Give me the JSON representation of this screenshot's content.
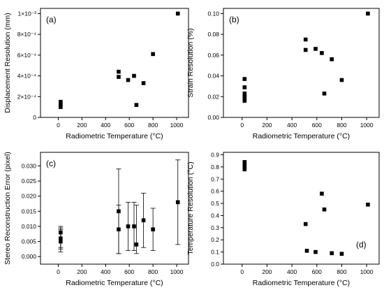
{
  "chart_data": [
    {
      "type": "scatter",
      "panel_label": "(a)",
      "xlabel": "Radiometric Temperature (°C)",
      "ylabel": "Displacement Resolution (mm)",
      "xlim": [
        -150,
        1100
      ],
      "ylim": [
        0,
        0.00105
      ],
      "xticks": [
        0,
        200,
        400,
        600,
        800,
        1000
      ],
      "xtick_labels": [
        "0",
        "200",
        "400",
        "600",
        "800",
        "1000"
      ],
      "yticks": [
        0,
        0.0002,
        0.0004,
        0.0006,
        0.0008,
        0.001
      ],
      "ytick_labels": [
        "0",
        "2×10⁻⁴",
        "4×10⁻⁴",
        "6×10⁻⁴",
        "8×10⁻⁴",
        "1×10⁻³"
      ],
      "series": [
        {
          "x": [
            20,
            20,
            20,
            510,
            510,
            590,
            640,
            660,
            720,
            800,
            1010
          ],
          "y": [
            0.0001,
            0.000125,
            0.00015,
            0.00044,
            0.00039,
            0.00036,
            0.0004,
            0.00012,
            0.00033,
            0.00061,
            0.001
          ]
        }
      ]
    },
    {
      "type": "scatter",
      "panel_label": "(b)",
      "xlabel": "Radiometric Temperature (°C)",
      "ylabel": "Strain Resolution (%)",
      "xlim": [
        -150,
        1100
      ],
      "ylim": [
        0,
        0.105
      ],
      "xticks": [
        0,
        200,
        400,
        600,
        800,
        1000
      ],
      "xtick_labels": [
        "0",
        "200",
        "400",
        "600",
        "800",
        "1000"
      ],
      "yticks": [
        0,
        0.02,
        0.04,
        0.06,
        0.08,
        0.1
      ],
      "ytick_labels": [
        "0.00",
        "0.02",
        "0.04",
        "0.06",
        "0.08",
        "0.10"
      ],
      "series": [
        {
          "x": [
            20,
            20,
            20,
            20,
            20,
            20,
            510,
            510,
            590,
            640,
            660,
            720,
            800,
            1010
          ],
          "y": [
            0.016,
            0.018,
            0.02,
            0.023,
            0.029,
            0.037,
            0.075,
            0.065,
            0.066,
            0.062,
            0.023,
            0.056,
            0.036,
            0.1
          ]
        }
      ]
    },
    {
      "type": "scatter",
      "panel_label": "(c)",
      "xlabel": "Radiometric Temperature (°C)",
      "ylabel": "Stereo Reconstruction Error (pixel)",
      "xlim": [
        -150,
        1100
      ],
      "ylim": [
        -0.0025,
        0.0345
      ],
      "xticks": [
        0,
        200,
        400,
        600,
        800,
        1000
      ],
      "xtick_labels": [
        "0",
        "200",
        "400",
        "600",
        "800",
        "1000"
      ],
      "yticks": [
        0,
        0.005,
        0.01,
        0.015,
        0.02,
        0.025,
        0.03
      ],
      "ytick_labels": [
        "0.000",
        "0.005",
        "0.010",
        "0.015",
        "0.020",
        "0.025",
        "0.030"
      ],
      "series": [
        {
          "x": [
            20,
            20,
            20,
            510,
            510,
            590,
            640,
            660,
            720,
            800,
            1010
          ],
          "y": [
            0.008,
            0.006,
            0.005,
            0.015,
            0.009,
            0.01,
            0.01,
            0.004,
            0.012,
            0.009,
            0.018
          ],
          "yerr_low": [
            0.0015,
            0.0025,
            0.003,
            0.001,
            0.001,
            0.002,
            0.002,
            0.001,
            0.003,
            0.002,
            0.004
          ],
          "yerr_high": [
            0.01,
            0.0095,
            0.009,
            0.029,
            0.017,
            0.018,
            0.018,
            0.017,
            0.021,
            0.016,
            0.032
          ]
        }
      ]
    },
    {
      "type": "scatter",
      "panel_label": "(d)",
      "xlabel": "Radiometric Temperature (°C)",
      "ylabel": "Temperature Resolution (°C)",
      "xlim": [
        -150,
        1100
      ],
      "ylim": [
        0,
        0.92
      ],
      "xticks": [
        0,
        200,
        400,
        600,
        800,
        1000
      ],
      "xtick_labels": [
        "0",
        "200",
        "400",
        "600",
        "800",
        "1000"
      ],
      "yticks": [
        0,
        0.1,
        0.2,
        0.3,
        0.4,
        0.5,
        0.6,
        0.7,
        0.8,
        0.9
      ],
      "ytick_labels": [
        "0.0",
        "0.1",
        "0.2",
        "0.3",
        "0.4",
        "0.5",
        "0.6",
        "0.7",
        "0.8",
        "0.9"
      ],
      "series": [
        {
          "x": [
            20,
            20,
            20,
            20,
            510,
            520,
            590,
            640,
            660,
            720,
            800,
            1010
          ],
          "y": [
            0.78,
            0.8,
            0.82,
            0.84,
            0.33,
            0.11,
            0.1,
            0.58,
            0.45,
            0.09,
            0.085,
            0.49
          ]
        }
      ]
    }
  ]
}
